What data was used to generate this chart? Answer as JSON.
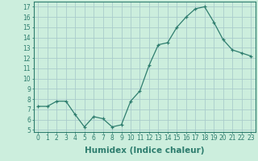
{
  "x": [
    0,
    1,
    2,
    3,
    4,
    5,
    6,
    7,
    8,
    9,
    10,
    11,
    12,
    13,
    14,
    15,
    16,
    17,
    18,
    19,
    20,
    21,
    22,
    23
  ],
  "y": [
    7.3,
    7.3,
    7.8,
    7.8,
    6.5,
    5.3,
    6.3,
    6.1,
    5.3,
    5.5,
    7.8,
    8.8,
    11.3,
    13.3,
    13.5,
    15.0,
    16.0,
    16.8,
    17.0,
    15.5,
    13.8,
    12.8,
    12.5,
    12.2
  ],
  "line_color": "#2e7d6e",
  "marker": "+",
  "bg_color": "#cceedd",
  "grid_color": "#aacccc",
  "xlabel": "Humidex (Indice chaleur)",
  "ylabel_ticks": [
    5,
    6,
    7,
    8,
    9,
    10,
    11,
    12,
    13,
    14,
    15,
    16,
    17
  ],
  "ylim": [
    4.8,
    17.5
  ],
  "xlim": [
    -0.5,
    23.5
  ],
  "font_color": "#2e7d6e",
  "tick_fontsize": 5.5,
  "label_fontsize": 7.5
}
